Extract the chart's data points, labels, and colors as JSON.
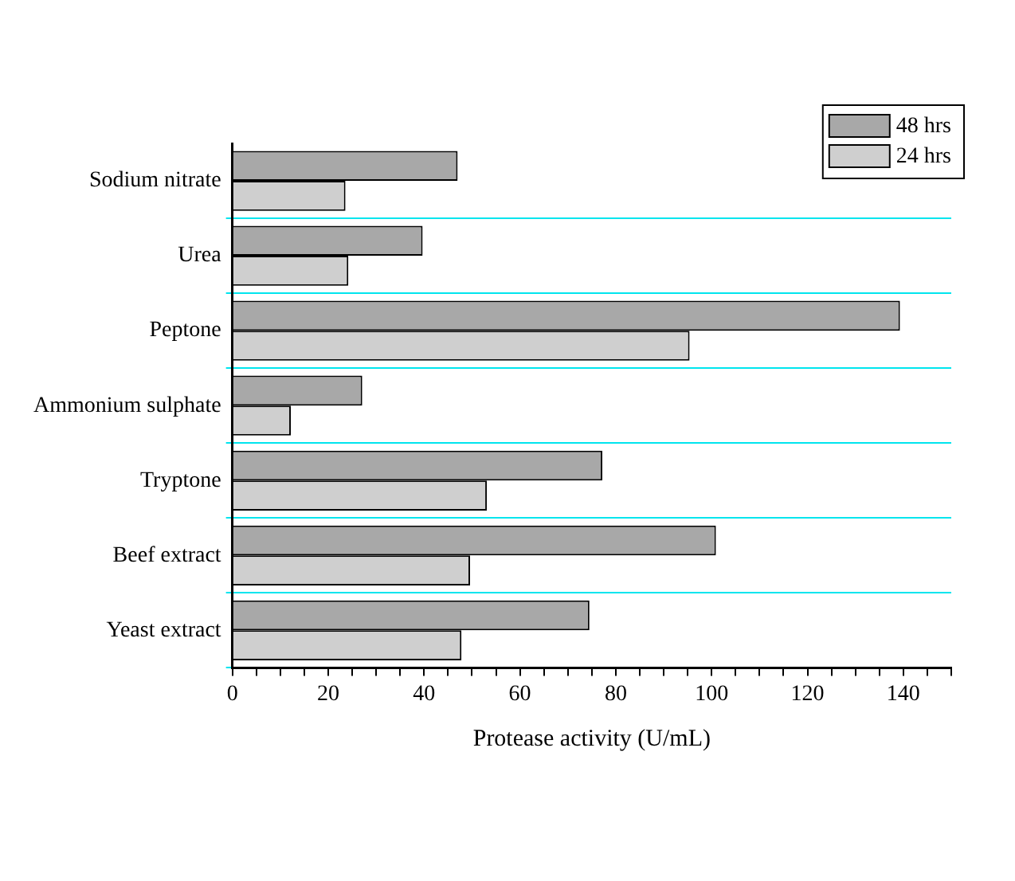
{
  "chart_data": {
    "type": "bar",
    "orientation": "horizontal",
    "xlabel": "Protease activity (U/mL)",
    "categories": [
      "Sodium nitrate",
      "Urea",
      "Peptone",
      "Ammonium sulphate",
      "Tryptone",
      "Beef extract",
      "Yeast extract"
    ],
    "series": [
      {
        "name": "48 hrs",
        "color": "#a8a8a8",
        "values": [
          47.0,
          39.7,
          139.3,
          27.1,
          77.2,
          100.9,
          74.5
        ]
      },
      {
        "name": "24 hrs",
        "color": "#cfcfcf",
        "values": [
          23.6,
          24.2,
          95.4,
          12.2,
          53.1,
          49.6,
          47.8
        ]
      }
    ],
    "xlim": [
      0,
      150
    ],
    "xticks": [
      0,
      {
        "value": 5,
        "label": null
      },
      {
        "value": 10,
        "label": null
      },
      {
        "value": 15,
        "label": null
      },
      20,
      {
        "value": 25,
        "label": null
      },
      {
        "value": 30,
        "label": null
      },
      {
        "value": 35,
        "label": null
      },
      40,
      {
        "value": 45,
        "label": null
      },
      {
        "value": 50,
        "label": null
      },
      {
        "value": 55,
        "label": null
      },
      60,
      {
        "value": 65,
        "label": null
      },
      {
        "value": 70,
        "label": null
      },
      {
        "value": 75,
        "label": null
      },
      80,
      {
        "value": 85,
        "label": null
      },
      {
        "value": 90,
        "label": null
      },
      {
        "value": 95,
        "label": null
      },
      100,
      {
        "value": 105,
        "label": null
      },
      {
        "value": 110,
        "label": null
      },
      {
        "value": 115,
        "label": null
      },
      120,
      {
        "value": 125,
        "label": null
      },
      {
        "value": 130,
        "label": null
      },
      {
        "value": 135,
        "label": null
      },
      140,
      {
        "value": 145,
        "label": null
      },
      {
        "value": 150,
        "label": null
      }
    ],
    "grid": "y",
    "legend": "top right"
  }
}
